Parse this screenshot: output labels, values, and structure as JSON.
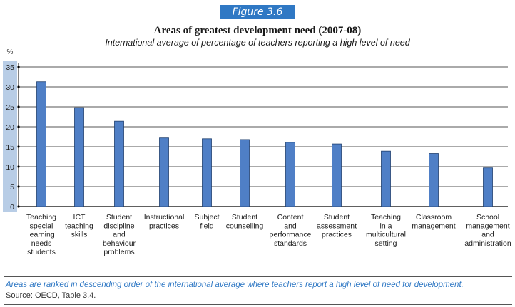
{
  "figure_label": "Figure 3.6",
  "title": "Areas of greatest development need (2007-08)",
  "subtitle": "International average of percentage of teachers reporting a high level of need",
  "note": "Areas are ranked in descending order of the international average where teachers report a high level of need for development.",
  "source": "Source: OECD, Table 3.4.",
  "colors": {
    "bar": "#4f7fc6",
    "bar_stroke": "#1f3f6e",
    "axis_band": "#b8cde6",
    "figure_label_bg": "#2f78c4",
    "note": "#2f78c4"
  },
  "chart_data": {
    "type": "bar",
    "ylabel": "%",
    "ylim": [
      0,
      35
    ],
    "yticks": [
      0,
      5,
      10,
      15,
      20,
      25,
      30,
      35
    ],
    "grid": true,
    "categories": [
      [
        "Teaching",
        "special",
        "learning",
        "needs",
        "students"
      ],
      [
        "ICT",
        "teaching",
        "skills"
      ],
      [
        "Student",
        "discipline",
        "and",
        "behaviour",
        "problems"
      ],
      [
        "Instructional",
        "practices"
      ],
      [
        "Subject",
        "field"
      ],
      [
        "Student",
        "counselling"
      ],
      [
        "Content",
        "and",
        "performance",
        "standards"
      ],
      [
        "Student",
        "assessment",
        "practices"
      ],
      [
        "Teaching",
        "in a",
        "multicultural",
        "setting"
      ],
      [
        "Classroom",
        "management"
      ],
      [
        "School",
        "management",
        "and",
        "administration"
      ]
    ],
    "values": [
      31.3,
      24.8,
      21.4,
      17.2,
      17.0,
      16.8,
      16.1,
      15.7,
      13.9,
      13.3,
      9.7
    ]
  }
}
